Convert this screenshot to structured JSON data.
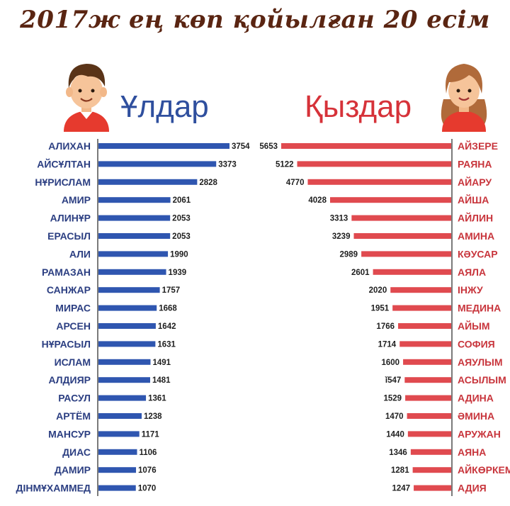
{
  "title": "2017ж ең көп қойылған 20 есім",
  "colors": {
    "boys": "#2f56b0",
    "girls": "#e04a4f",
    "boys_text": "#2f4f9e",
    "girls_text": "#d63239",
    "name_text_boys": "#2c3f82",
    "name_text_girls": "#c8353c"
  },
  "boys_heading": "Ұлдар",
  "girls_heading": "Қыздар",
  "icons": {
    "boy": "boy-avatar-icon",
    "girl": "girl-avatar-icon"
  },
  "chart_data": [
    {
      "type": "bar",
      "orientation": "horizontal",
      "title": "Ұлдар",
      "categories": [
        "АЛИХАН",
        "АЙСҰЛТАН",
        "НҰРИСЛАМ",
        "АМИР",
        "АЛИНҰР",
        "ЕРАСЫЛ",
        "АЛИ",
        "РАМАЗАН",
        "САНЖАР",
        "МИРАС",
        "АРСЕН",
        "НҰРАСЫЛ",
        "ИСЛАМ",
        "АЛДИЯР",
        "РАСУЛ",
        "АРТЁМ",
        "МАНСУР",
        "ДИАС",
        "ДАМИР",
        "ДІНМҰХАММЕД"
      ],
      "values": [
        3754,
        3373,
        2828,
        2061,
        2053,
        2053,
        1990,
        1939,
        1757,
        1668,
        1642,
        1631,
        1491,
        1481,
        1361,
        1238,
        1171,
        1106,
        1076,
        1070
      ],
      "value_labels": [
        "3754",
        "3373",
        "2828",
        "2061",
        "2053",
        "2053",
        "1990",
        "1939",
        "1757",
        "1668",
        "1642",
        "1631",
        "1491",
        "1481",
        "1361",
        "1238",
        "1171",
        "1106",
        "1076",
        "1070"
      ]
    },
    {
      "type": "bar",
      "orientation": "horizontal",
      "title": "Қыздар",
      "categories": [
        "АЙЗЕРЕ",
        "РАЯНА",
        "АЙАРУ",
        "АЙША",
        "АЙЛИН",
        "АМИНА",
        "КӘУСАР",
        "АЯЛА",
        "ІНЖУ",
        "МЕДИНА",
        "АЙЫМ",
        "СОФИЯ",
        "АЯУЛЫМ",
        "АСЫЛЫМ",
        "АДИНА",
        "ӘМИНА",
        "АРУЖАН",
        "АЯНА",
        "АЙКӨРКЕМ",
        "АДИЯ"
      ],
      "values": [
        5653,
        5122,
        4770,
        4028,
        3313,
        3239,
        2989,
        2601,
        2020,
        1951,
        1766,
        1714,
        1600,
        1547,
        1529,
        1470,
        1440,
        1346,
        1281,
        1247
      ],
      "value_labels": [
        "5653",
        "5122",
        "4770",
        "4028",
        "3313",
        "3239",
        "2989",
        "2601",
        "2020",
        "1951",
        "1766",
        "1714",
        "1600",
        "ǐ547",
        "1529",
        "1470",
        "1440",
        "1346",
        "1281",
        "1247"
      ]
    }
  ]
}
